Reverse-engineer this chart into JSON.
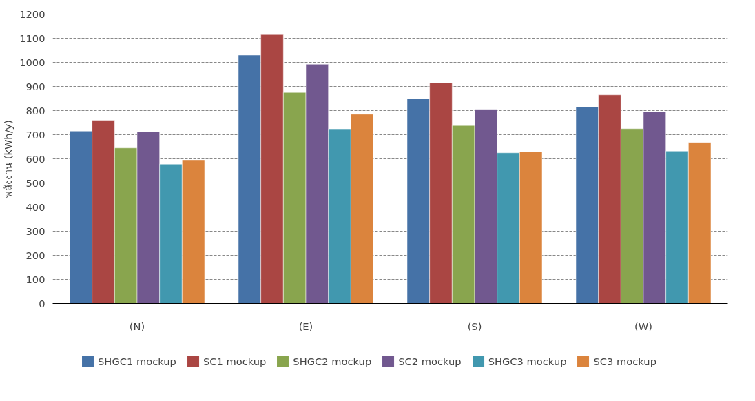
{
  "chart_data": {
    "type": "bar",
    "ylabel": "พลังงาน (kWh/y)",
    "categories": [
      "(N)",
      "(E)",
      "(S)",
      "(W)"
    ],
    "series": [
      {
        "name": "SHGC1 mockup",
        "color": "#4572a7",
        "values": [
          715,
          1030,
          850,
          815
        ]
      },
      {
        "name": "SC1 mockup",
        "color": "#aa4643",
        "values": [
          760,
          1115,
          915,
          865
        ]
      },
      {
        "name": "SHGC2 mockup",
        "color": "#89a54e",
        "values": [
          645,
          875,
          738,
          725
        ]
      },
      {
        "name": "SC2 mockup",
        "color": "#71588f",
        "values": [
          712,
          992,
          805,
          795
        ]
      },
      {
        "name": "SHGC3 mockup",
        "color": "#4198af",
        "values": [
          578,
          724,
          625,
          632
        ]
      },
      {
        "name": "SC3 mockup",
        "color": "#db843d",
        "values": [
          596,
          785,
          630,
          668
        ]
      }
    ],
    "ylim": [
      0,
      1200
    ],
    "yticks": [
      0,
      100,
      200,
      300,
      400,
      500,
      600,
      700,
      800,
      900,
      1000,
      1100,
      1200
    ],
    "grid": "y",
    "legend": "bottom"
  }
}
